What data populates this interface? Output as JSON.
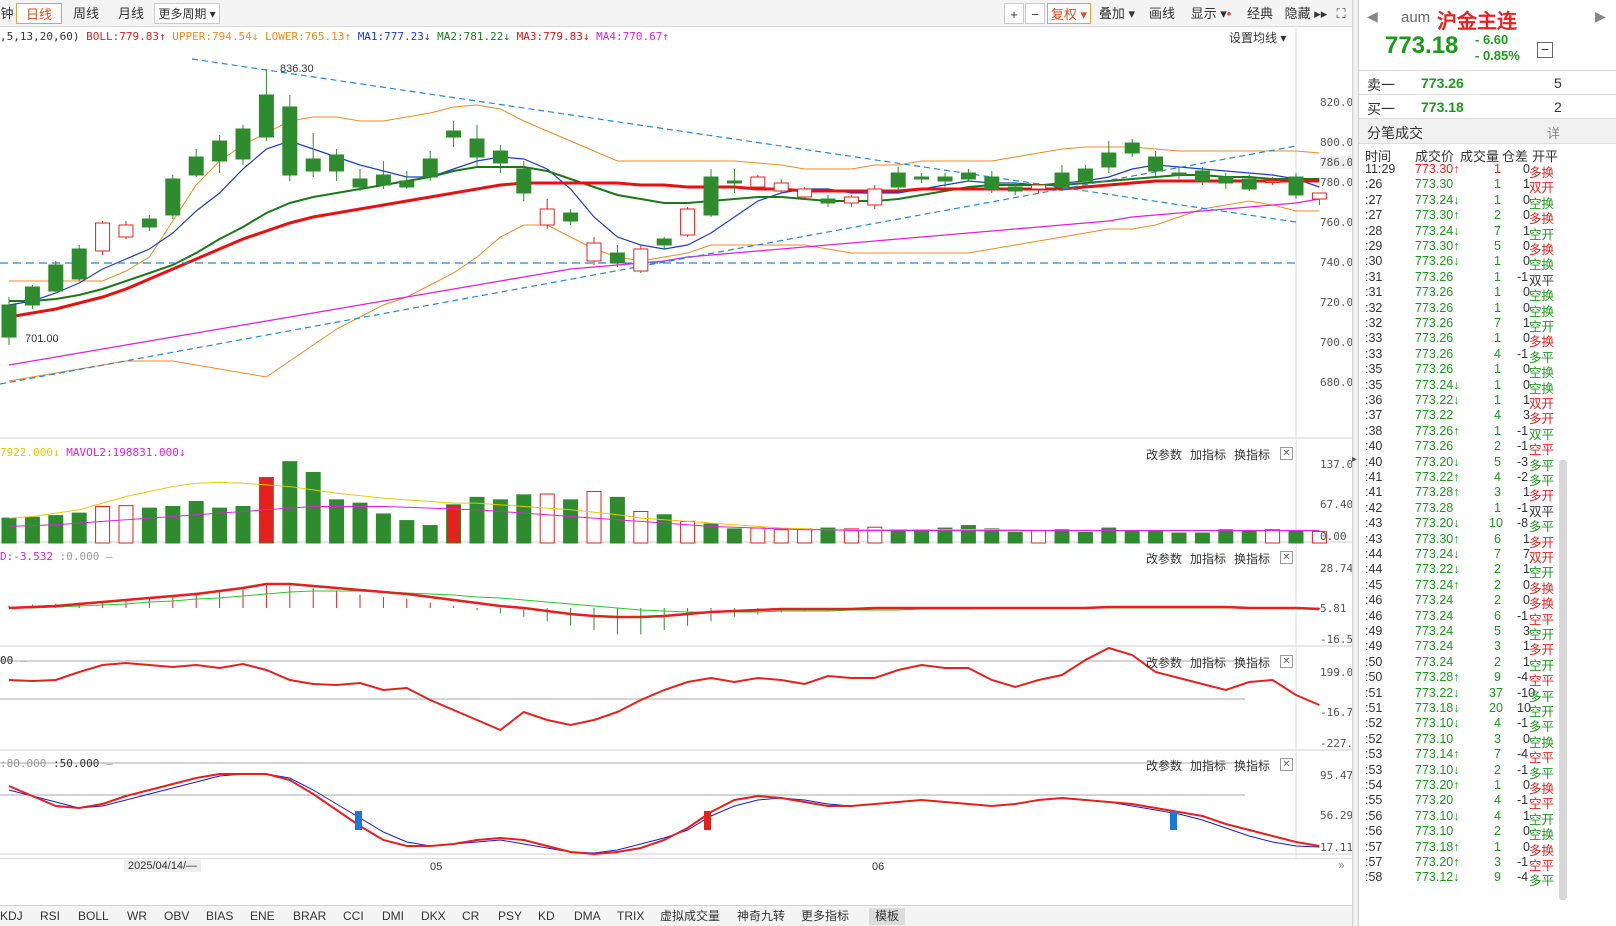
{
  "toolbar": {
    "tabs": [
      "钟",
      "日线",
      "周线",
      "月线",
      "更多周期"
    ],
    "buttons": [
      "+",
      "−",
      "复权",
      "叠加",
      "画线",
      "显示",
      "经典",
      "隐藏"
    ],
    "settings_ma": "设置均线"
  },
  "indicators": {
    "main_params": ",5,13,20,60)",
    "boll": "BOLL:779.83",
    "upper": "UPPER:794.54",
    "lower": "LOWER:765.13",
    "ma1": "MA1:777.23",
    "ma2": "MA2:781.22",
    "ma3": "MA3:779.83",
    "ma4": "MA4:770.67",
    "vol": "7922.000",
    "mavol2": "MAVOL2:198831.000",
    "macd": "D:-3.532",
    "macd2": ":0.000",
    "cci": "00",
    "kdj": ":80.000",
    "kdj2": ":50.000"
  },
  "panel_buttons": [
    "改参数",
    "加指标",
    "换指标"
  ],
  "chart_data": {
    "type": "candlestick",
    "y_axis": [
      "820.00",
      "800.00",
      "786.00",
      "780.00",
      "760.00",
      "740.00",
      "720.00",
      "700.00",
      "680.00"
    ],
    "annotations": [
      "836.30",
      "701.00"
    ],
    "vol_axis": [
      "137.00",
      "67.40",
      "0.00"
    ],
    "macd_axis": [
      "28.74",
      "5.81",
      "-16.57"
    ],
    "cci_axis": [
      "199.03",
      "-16.77",
      "-227.42"
    ],
    "kdj_axis": [
      "95.47",
      "56.29",
      "17.11"
    ],
    "x_labels": [
      "2025/04/14/—",
      "05",
      "06"
    ]
  },
  "bottom_tabs": [
    "KDJ",
    "RSI",
    "BOLL",
    "WR",
    "OBV",
    "BIAS",
    "ENE",
    "BRAR",
    "CCI",
    "DMI",
    "DKX",
    "CR",
    "PSY",
    "KD",
    "DMA",
    "TRIX",
    "虚拟成交量",
    "神奇九转",
    "更多指标",
    "模板"
  ],
  "quote": {
    "code": "aum",
    "name": "沪金主连",
    "price": "773.18",
    "change": "- 6.60",
    "change_pct": "- 0.85%",
    "sell_label": "卖一",
    "sell_price": "773.26",
    "sell_vol": "5",
    "buy_label": "买一",
    "buy_price": "773.18",
    "buy_vol": "2",
    "trades_title": "分笔成交",
    "detail": "详",
    "headers": [
      "时间",
      "成交价",
      "成交量",
      "仓差",
      "开平"
    ]
  },
  "trades": [
    [
      "11:29",
      "773.30",
      "↑",
      "1",
      "0",
      "多换",
      "r",
      "r"
    ],
    [
      ":26",
      "773.30",
      "",
      "1",
      "1",
      "双开",
      "g",
      "r"
    ],
    [
      ":27",
      "773.24",
      "↓",
      "1",
      "0",
      "空换",
      "g",
      "g"
    ],
    [
      ":27",
      "773.30",
      "↑",
      "2",
      "0",
      "多换",
      "g",
      "r"
    ],
    [
      ":28",
      "773.24",
      "↓",
      "7",
      "1",
      "空开",
      "g",
      "g"
    ],
    [
      ":29",
      "773.30",
      "↑",
      "5",
      "0",
      "多换",
      "g",
      "r"
    ],
    [
      ":30",
      "773.26",
      "↓",
      "1",
      "0",
      "空换",
      "g",
      "g"
    ],
    [
      ":31",
      "773.26",
      "",
      "1",
      "-1",
      "双平",
      "g",
      "k"
    ],
    [
      ":31",
      "773.26",
      "",
      "1",
      "0",
      "空换",
      "g",
      "g"
    ],
    [
      ":32",
      "773.26",
      "",
      "1",
      "0",
      "空换",
      "g",
      "g"
    ],
    [
      ":32",
      "773.26",
      "",
      "7",
      "1",
      "空开",
      "g",
      "g"
    ],
    [
      ":33",
      "773.26",
      "",
      "1",
      "0",
      "多换",
      "g",
      "r"
    ],
    [
      ":33",
      "773.26",
      "",
      "4",
      "-1",
      "多平",
      "g",
      "g"
    ],
    [
      ":35",
      "773.26",
      "",
      "1",
      "0",
      "空换",
      "g",
      "g"
    ],
    [
      ":35",
      "773.24",
      "↓",
      "1",
      "0",
      "空换",
      "g",
      "g"
    ],
    [
      ":36",
      "773.22",
      "↓",
      "1",
      "1",
      "双开",
      "g",
      "r"
    ],
    [
      ":37",
      "773.22",
      "",
      "4",
      "3",
      "多开",
      "g",
      "r"
    ],
    [
      ":38",
      "773.26",
      "↑",
      "1",
      "-1",
      "双平",
      "g",
      "g"
    ],
    [
      ":40",
      "773.26",
      "",
      "2",
      "-1",
      "空平",
      "g",
      "r"
    ],
    [
      ":40",
      "773.20",
      "↓",
      "5",
      "-3",
      "多平",
      "g",
      "g"
    ],
    [
      ":41",
      "773.22",
      "↑",
      "4",
      "-2",
      "多平",
      "g",
      "g"
    ],
    [
      ":41",
      "773.28",
      "↑",
      "3",
      "1",
      "多开",
      "g",
      "r"
    ],
    [
      ":42",
      "773.28",
      "",
      "1",
      "-1",
      "双平",
      "g",
      "k"
    ],
    [
      ":43",
      "773.20",
      "↓",
      "10",
      "-8",
      "多平",
      "g",
      "g"
    ],
    [
      ":43",
      "773.30",
      "↑",
      "6",
      "1",
      "多开",
      "g",
      "r"
    ],
    [
      ":44",
      "773.24",
      "↓",
      "7",
      "7",
      "双开",
      "g",
      "r"
    ],
    [
      ":44",
      "773.22",
      "↓",
      "2",
      "1",
      "空开",
      "g",
      "g"
    ],
    [
      ":45",
      "773.24",
      "↑",
      "2",
      "0",
      "多换",
      "g",
      "r"
    ],
    [
      ":46",
      "773.24",
      "",
      "2",
      "0",
      "多换",
      "g",
      "r"
    ],
    [
      ":46",
      "773.24",
      "",
      "6",
      "-1",
      "空平",
      "g",
      "r"
    ],
    [
      ":49",
      "773.24",
      "",
      "5",
      "3",
      "空开",
      "g",
      "g"
    ],
    [
      ":49",
      "773.24",
      "",
      "3",
      "1",
      "多开",
      "g",
      "r"
    ],
    [
      ":50",
      "773.24",
      "",
      "2",
      "1",
      "空开",
      "g",
      "g"
    ],
    [
      ":50",
      "773.28",
      "↑",
      "9",
      "-4",
      "空平",
      "g",
      "r"
    ],
    [
      ":51",
      "773.22",
      "↓",
      "37",
      "-10",
      "多平",
      "g",
      "g"
    ],
    [
      ":51",
      "773.18",
      "↓",
      "20",
      "10",
      "空开",
      "g",
      "g"
    ],
    [
      ":52",
      "773.10",
      "↓",
      "4",
      "-1",
      "多平",
      "g",
      "g"
    ],
    [
      ":52",
      "773.10",
      "",
      "3",
      "0",
      "空换",
      "g",
      "g"
    ],
    [
      ":53",
      "773.14",
      "↑",
      "7",
      "-4",
      "空平",
      "g",
      "r"
    ],
    [
      ":53",
      "773.10",
      "↓",
      "2",
      "-1",
      "多平",
      "g",
      "g"
    ],
    [
      ":54",
      "773.20",
      "↑",
      "1",
      "0",
      "多换",
      "g",
      "r"
    ],
    [
      ":55",
      "773.20",
      "",
      "4",
      "-1",
      "空平",
      "g",
      "r"
    ],
    [
      ":56",
      "773.10",
      "↓",
      "4",
      "1",
      "空开",
      "g",
      "g"
    ],
    [
      ":56",
      "773.10",
      "",
      "2",
      "0",
      "空换",
      "g",
      "g"
    ],
    [
      ":57",
      "773.18",
      "↑",
      "1",
      "0",
      "多换",
      "g",
      "r"
    ],
    [
      ":57",
      "773.20",
      "↑",
      "3",
      "-1",
      "空平",
      "g",
      "r"
    ],
    [
      ":58",
      "773.12",
      "↓",
      "9",
      "-4",
      "多平",
      "g",
      "g"
    ]
  ],
  "colors": {
    "up": "#e4211d",
    "down": "#2e8b2e",
    "ma1": "#1e3cc8",
    "ma2": "#1a7a1a",
    "ma3": "#e81010",
    "ma4": "#e020e0",
    "boll": "#f08a20"
  }
}
